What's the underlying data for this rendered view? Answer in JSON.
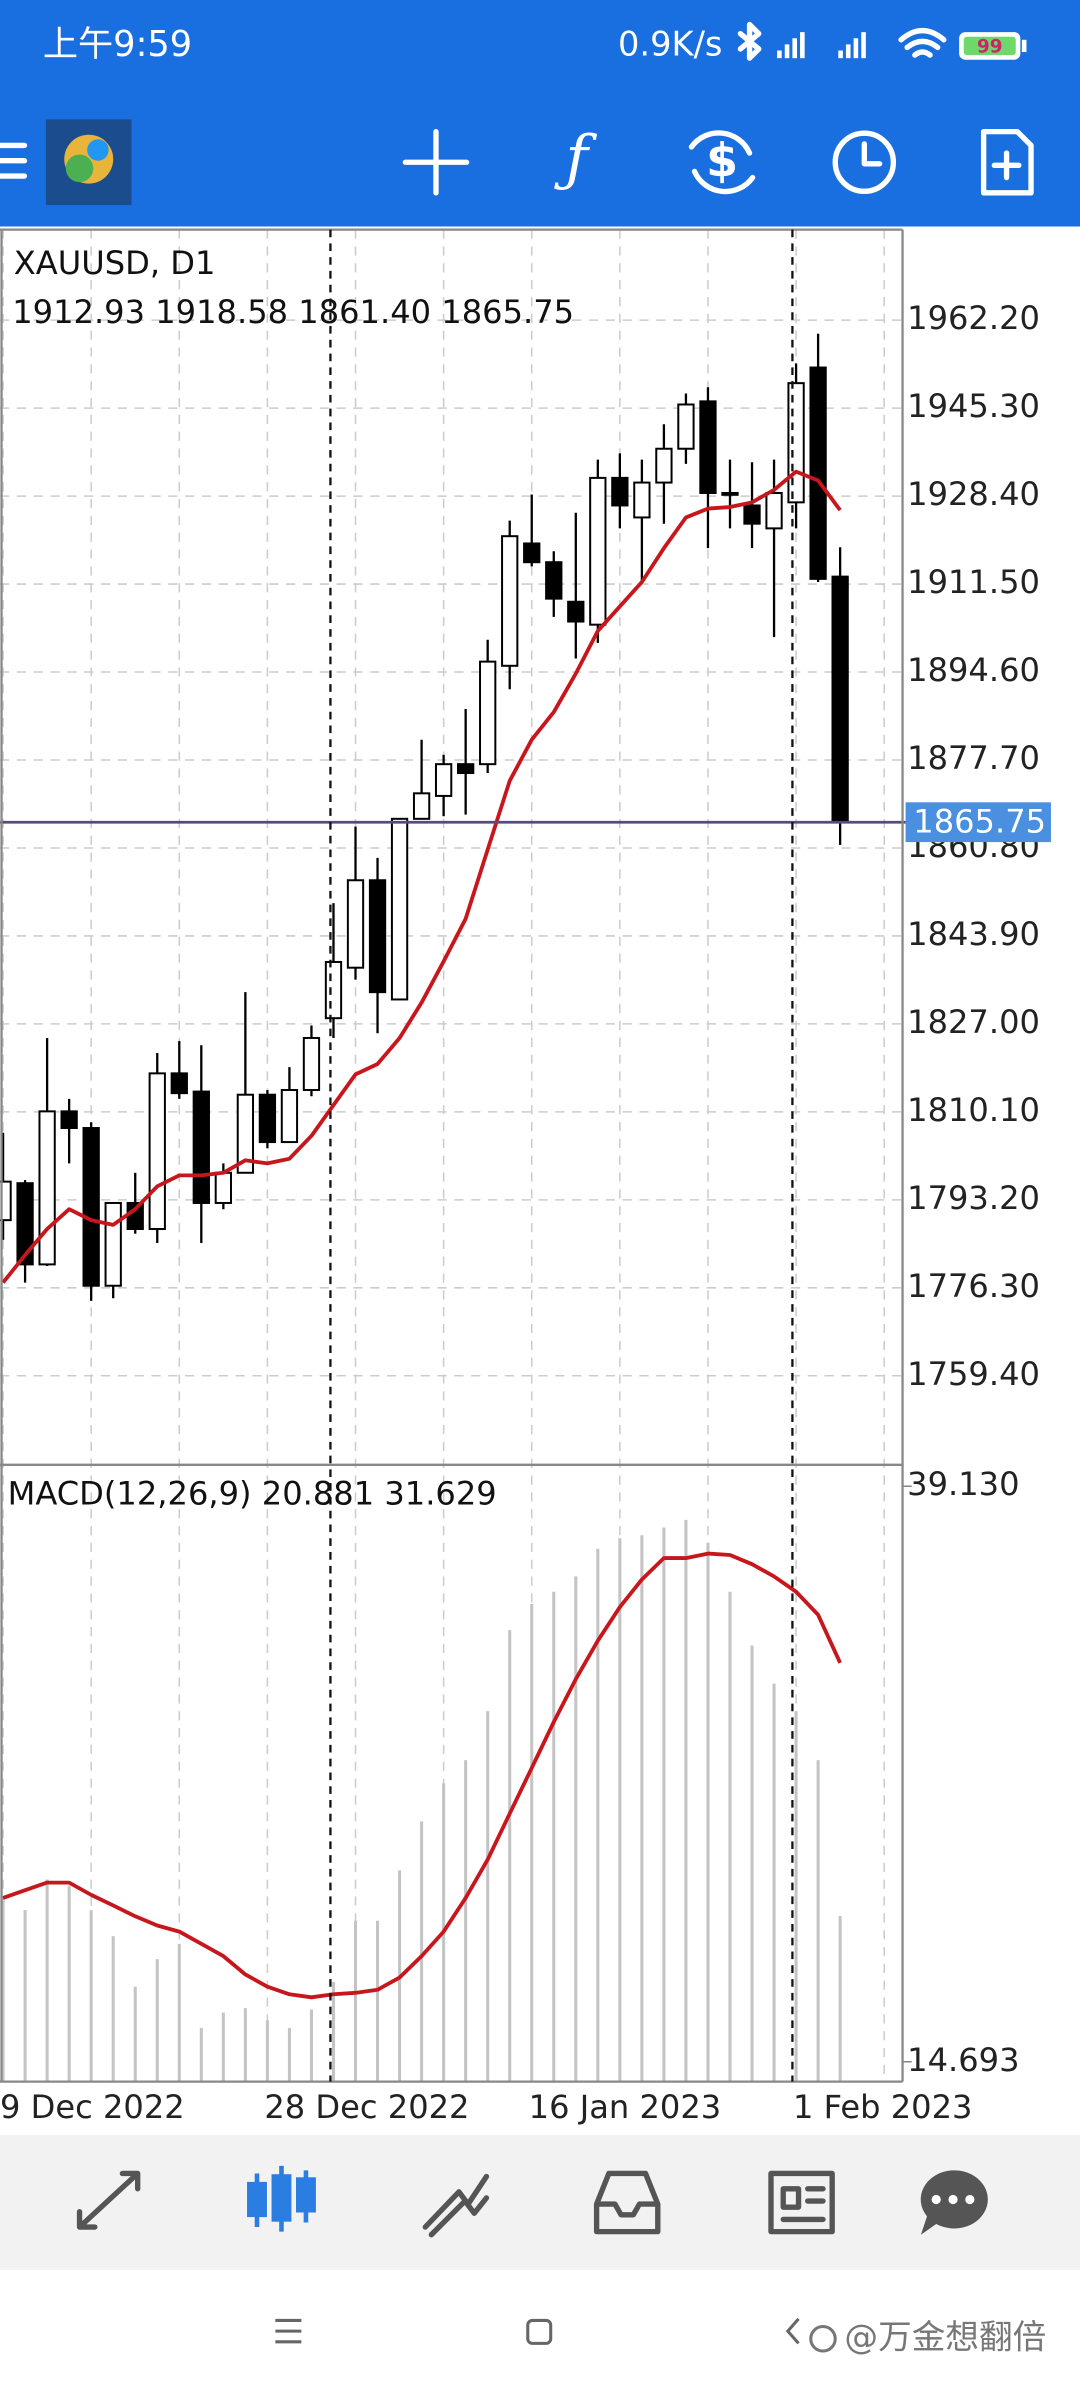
{
  "status_bar": {
    "time": "上午9:59",
    "speed": "0.9K/s",
    "battery": 99
  },
  "chart_data": [
    {
      "type": "candlestick",
      "symbol_label": "XAUUSD, D1",
      "ohlc_label": "1912.93 1918.58 1861.40 1865.75",
      "open": [
        1789.3,
        1796.4,
        1780.8,
        1810.2,
        1807.0,
        1776.7,
        1792.6,
        1787.6,
        1817.5,
        1814.0,
        1792.6,
        1798.4,
        1813.4,
        1804.3,
        1814.3,
        1828.1,
        1837.8,
        1854.6,
        1831.7,
        1866.4,
        1870.8,
        1876.9,
        1876.9,
        1895.8,
        1919.3,
        1915.7,
        1908.1,
        1903.7,
        1931.9,
        1924.3,
        1931.0,
        1937.5,
        1946.6,
        1929.0,
        1926.6,
        1922.2,
        1927.2,
        1953.1,
        1912.93
      ],
      "high": [
        1806.1,
        1797.0,
        1824.3,
        1812.6,
        1808.1,
        1792.6,
        1798.4,
        1821.4,
        1823.7,
        1822.9,
        1800.2,
        1833.1,
        1814.3,
        1818.7,
        1826.7,
        1850.2,
        1864.9,
        1858.9,
        1866.4,
        1881.6,
        1878.7,
        1887.5,
        1900.8,
        1923.7,
        1928.7,
        1917.8,
        1925.2,
        1935.4,
        1936.6,
        1935.4,
        1942.2,
        1948.1,
        1949.3,
        1935.4,
        1934.9,
        1935.4,
        1953.9,
        1959.6,
        1918.58
      ],
      "low": [
        1785.5,
        1777.3,
        1780.5,
        1800.2,
        1773.8,
        1774.3,
        1786.7,
        1784.9,
        1812.6,
        1784.9,
        1791.4,
        1798.4,
        1803.1,
        1804.3,
        1813.1,
        1824.3,
        1835.5,
        1825.2,
        1831.7,
        1866.4,
        1866.9,
        1867.2,
        1875.2,
        1891.3,
        1914.9,
        1905.2,
        1897.2,
        1900.2,
        1922.2,
        1911.9,
        1923.1,
        1934.6,
        1918.4,
        1922.2,
        1918.4,
        1901.3,
        1922.2,
        1911.9,
        1861.4
      ],
      "close": [
        1796.7,
        1780.8,
        1810.2,
        1807.0,
        1776.7,
        1792.6,
        1787.6,
        1817.5,
        1813.7,
        1792.6,
        1798.4,
        1813.4,
        1804.3,
        1814.3,
        1824.3,
        1838.9,
        1854.6,
        1833.1,
        1866.4,
        1871.3,
        1876.9,
        1875.2,
        1896.6,
        1920.7,
        1915.7,
        1908.7,
        1904.3,
        1931.9,
        1926.6,
        1931.0,
        1937.5,
        1946.0,
        1929.0,
        1928.7,
        1923.1,
        1929.0,
        1950.1,
        1912.5,
        1865.75
      ],
      "up_color": "#ffffff",
      "down_color": "#000000",
      "wick_color": "#000000",
      "ma": {
        "color": "#c8161d",
        "values": [
          1777.3,
          1782.6,
          1787.6,
          1791.4,
          1789.3,
          1788.4,
          1791.4,
          1795.8,
          1797.9,
          1797.9,
          1798.4,
          1800.8,
          1800.2,
          1801.1,
          1805.5,
          1811.4,
          1817.3,
          1819.3,
          1824.3,
          1831.1,
          1839.0,
          1847.2,
          1860.5,
          1873.7,
          1881.6,
          1886.9,
          1894.3,
          1902.5,
          1907.2,
          1911.9,
          1918.4,
          1924.3,
          1926.0,
          1926.3,
          1927.2,
          1929.6,
          1933.1,
          1931.4,
          1925.7
        ]
      },
      "current_price": 1865.75,
      "current_price_color": "#4a8fe0",
      "ylim": [
        1742.3,
        1979.6
      ],
      "yticks": [
        {
          "value": 1962.2,
          "label": "1962.20"
        },
        {
          "value": 1945.3,
          "label": "1945.30"
        },
        {
          "value": 1928.4,
          "label": "1928.40"
        },
        {
          "value": 1911.5,
          "label": "1911.50"
        },
        {
          "value": 1894.6,
          "label": "1894.60"
        },
        {
          "value": 1877.7,
          "label": "1877.70"
        },
        {
          "value": 1860.8,
          "label": "1860.80"
        },
        {
          "value": 1843.9,
          "label": "1843.90"
        },
        {
          "value": 1827.0,
          "label": "1827.00"
        },
        {
          "value": 1810.1,
          "label": "1810.10"
        },
        {
          "value": 1793.2,
          "label": "1793.20"
        },
        {
          "value": 1776.3,
          "label": "1776.30"
        },
        {
          "value": 1759.4,
          "label": "1759.40"
        }
      ],
      "grid": true
    },
    {
      "type": "macd",
      "label": "MACD(12,26,9) 20.881 31.629",
      "categories": [
        "9 Dec 2022",
        null,
        null,
        null,
        null,
        null,
        null,
        null,
        null,
        null,
        null,
        null,
        "28 Dec 2022",
        null,
        null,
        null,
        null,
        null,
        null,
        null,
        null,
        null,
        null,
        null,
        "16 Jan 2023",
        null,
        null,
        null,
        null,
        null,
        null,
        null,
        null,
        null,
        null,
        null,
        "1 Feb 2023",
        null,
        null
      ],
      "histogram": {
        "color": "#c4c4c4",
        "values": [
          21.65,
          21.13,
          22.43,
          22.17,
          21.13,
          20.03,
          17.88,
          19.05,
          19.7,
          16.13,
          16.78,
          16.97,
          16.45,
          16.13,
          16.91,
          18.08,
          20.68,
          20.68,
          22.82,
          24.9,
          26.52,
          27.5,
          29.58,
          33.02,
          34.13,
          34.65,
          35.3,
          36.47,
          36.92,
          37.05,
          37.38,
          37.7,
          36.73,
          34.65,
          32.37,
          30.75,
          29.58,
          27.5,
          20.88
        ]
      },
      "signal": {
        "color": "#c8161d",
        "values": [
          21.65,
          21.98,
          22.3,
          22.3,
          21.78,
          21.33,
          20.87,
          20.48,
          20.22,
          19.7,
          19.18,
          18.4,
          17.88,
          17.56,
          17.43,
          17.56,
          17.62,
          17.75,
          18.27,
          19.18,
          20.22,
          21.65,
          23.28,
          25.23,
          27.17,
          29.12,
          30.94,
          32.57,
          34.0,
          35.17,
          36.08,
          36.08,
          36.27,
          36.21,
          35.82,
          35.3,
          34.65,
          33.67,
          31.63
        ]
      },
      "ylim": [
        13.85,
        40.04
      ],
      "yticks": [
        {
          "value": 39.13,
          "label": "39.130"
        },
        14.693
      ]
    }
  ],
  "watermark": "@万金想翻倍"
}
